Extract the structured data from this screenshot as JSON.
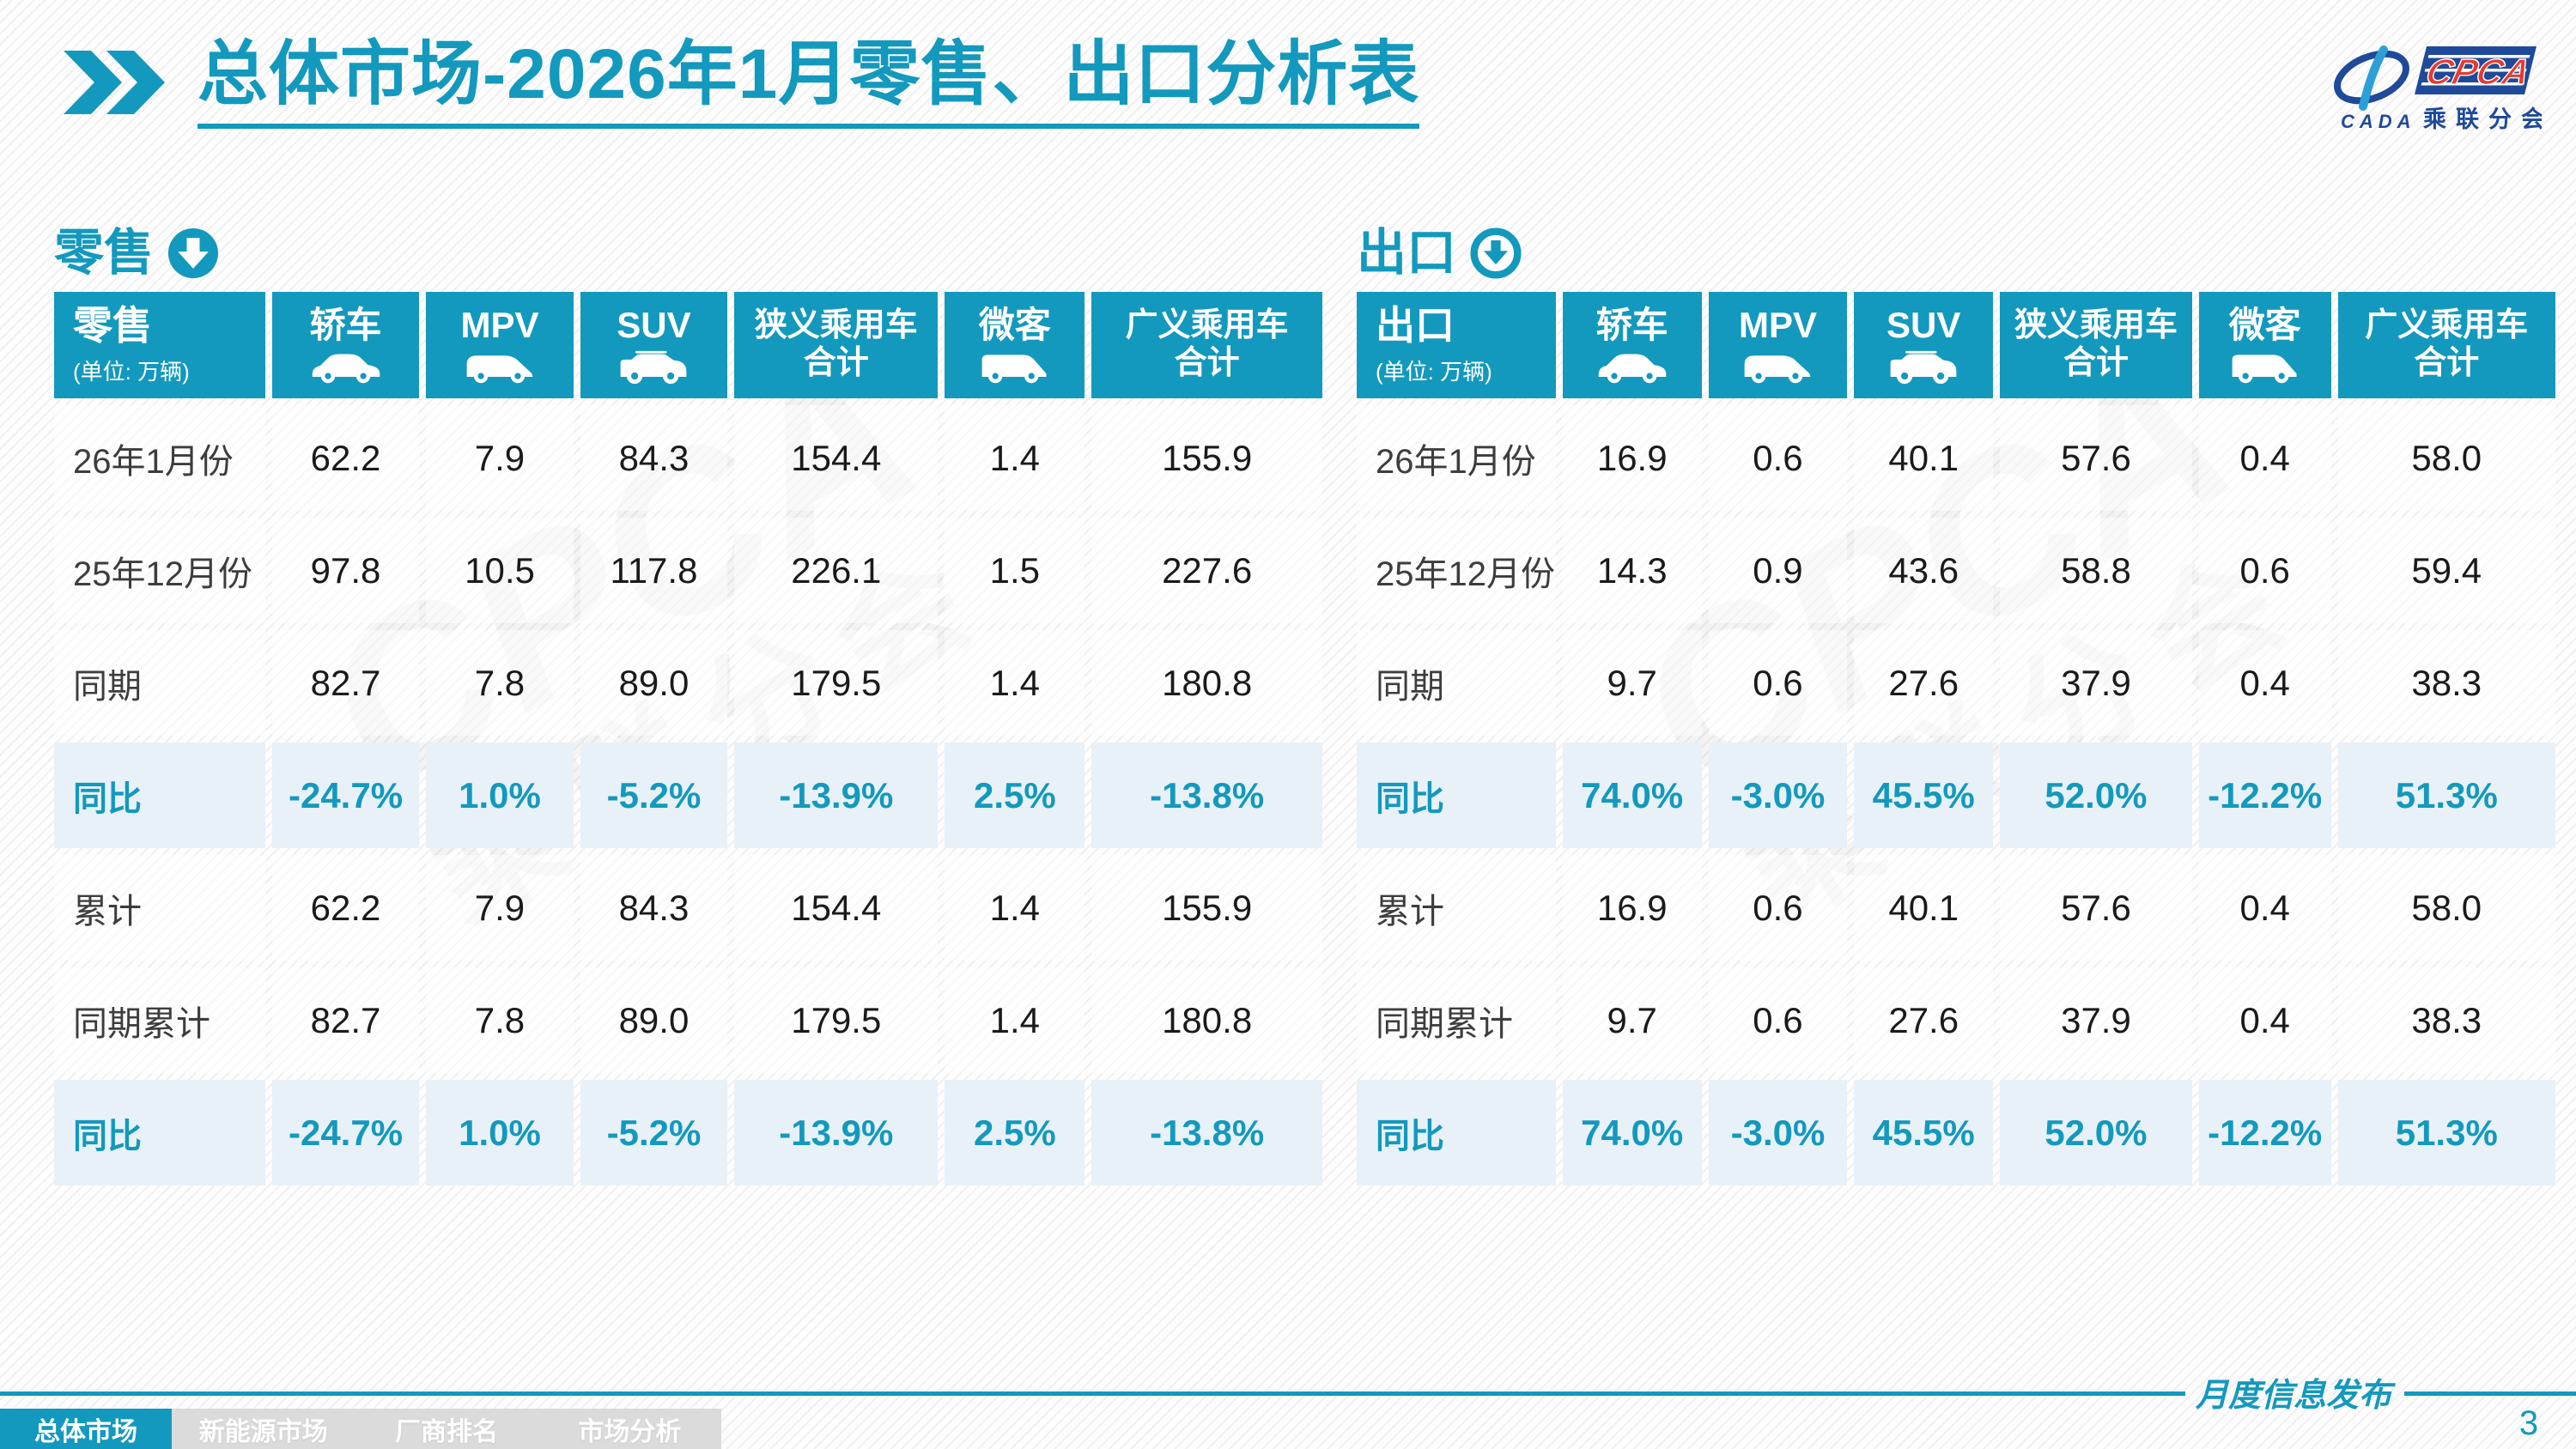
{
  "title": "总体市场-2026年1月零售、出口分析表",
  "unit_note": "(单位: 万辆)",
  "colors": {
    "accent": "#1399BD",
    "ratio_row_bg": "#E8F1F7",
    "nav_inactive_bg": "#DBDBDB",
    "logo_navy": "#1F4A99",
    "logo_red": "#E8392F",
    "logo_light_blue": "#2D9FD8"
  },
  "logo": {
    "wordmark": "CPCA",
    "subtitle": "乘联分会",
    "swoosh_text": "CADA"
  },
  "columns": [
    {
      "key": "sedan",
      "label": "轿车",
      "icon": "sedan-car-icon"
    },
    {
      "key": "mpv",
      "label": "MPV",
      "icon": "mpv-car-icon"
    },
    {
      "key": "suv",
      "label": "SUV",
      "icon": "suv-car-icon"
    },
    {
      "key": "narrow-pv-total",
      "label": "狭义乘用车合计",
      "icon": null
    },
    {
      "key": "microvan",
      "label": "微客",
      "icon": "minivan-icon"
    },
    {
      "key": "broad-pv-total",
      "label": "广义乘用车合计",
      "icon": null
    }
  ],
  "tables": [
    {
      "key": "retail",
      "section_label": "零售",
      "arrow_icon": "down-arrow-circle-solid-icon",
      "rows": [
        {
          "label": "26年1月份",
          "type": "data",
          "values": [
            "62.2",
            "7.9",
            "84.3",
            "154.4",
            "1.4",
            "155.9"
          ]
        },
        {
          "label": "25年12月份",
          "type": "data",
          "values": [
            "97.8",
            "10.5",
            "117.8",
            "226.1",
            "1.5",
            "227.6"
          ]
        },
        {
          "label": "同期",
          "type": "data",
          "values": [
            "82.7",
            "7.8",
            "89.0",
            "179.5",
            "1.4",
            "180.8"
          ]
        },
        {
          "label": "同比",
          "type": "ratio",
          "values": [
            "-24.7%",
            "1.0%",
            "-5.2%",
            "-13.9%",
            "2.5%",
            "-13.8%"
          ]
        },
        {
          "label": "累计",
          "type": "data",
          "values": [
            "62.2",
            "7.9",
            "84.3",
            "154.4",
            "1.4",
            "155.9"
          ]
        },
        {
          "label": "同期累计",
          "type": "data",
          "values": [
            "82.7",
            "7.8",
            "89.0",
            "179.5",
            "1.4",
            "180.8"
          ]
        },
        {
          "label": "同比",
          "type": "ratio",
          "values": [
            "-24.7%",
            "1.0%",
            "-5.2%",
            "-13.9%",
            "2.5%",
            "-13.8%"
          ]
        }
      ]
    },
    {
      "key": "export",
      "section_label": "出口",
      "arrow_icon": "down-arrow-circle-outline-icon",
      "rows": [
        {
          "label": "26年1月份",
          "type": "data",
          "values": [
            "16.9",
            "0.6",
            "40.1",
            "57.6",
            "0.4",
            "58.0"
          ]
        },
        {
          "label": "25年12月份",
          "type": "data",
          "values": [
            "14.3",
            "0.9",
            "43.6",
            "58.8",
            "0.6",
            "59.4"
          ]
        },
        {
          "label": "同期",
          "type": "data",
          "values": [
            "9.7",
            "0.6",
            "27.6",
            "37.9",
            "0.4",
            "38.3"
          ]
        },
        {
          "label": "同比",
          "type": "ratio",
          "values": [
            "74.0%",
            "-3.0%",
            "45.5%",
            "52.0%",
            "-12.2%",
            "51.3%"
          ]
        },
        {
          "label": "累计",
          "type": "data",
          "values": [
            "16.9",
            "0.6",
            "40.1",
            "57.6",
            "0.4",
            "58.0"
          ]
        },
        {
          "label": "同期累计",
          "type": "data",
          "values": [
            "9.7",
            "0.6",
            "27.6",
            "37.9",
            "0.4",
            "38.3"
          ]
        },
        {
          "label": "同比",
          "type": "ratio",
          "values": [
            "74.0%",
            "-3.0%",
            "45.5%",
            "52.0%",
            "-12.2%",
            "51.3%"
          ]
        }
      ]
    }
  ],
  "footer": {
    "publication": "月度信息发布",
    "page_number": "3",
    "tabs": [
      {
        "key": "overall-market",
        "label": "总体市场",
        "active": true
      },
      {
        "key": "nev-market",
        "label": "新能源市场",
        "active": false
      },
      {
        "key": "oem-ranking",
        "label": "厂商排名",
        "active": false
      },
      {
        "key": "market-analysis",
        "label": "市场分析",
        "active": false
      }
    ]
  }
}
